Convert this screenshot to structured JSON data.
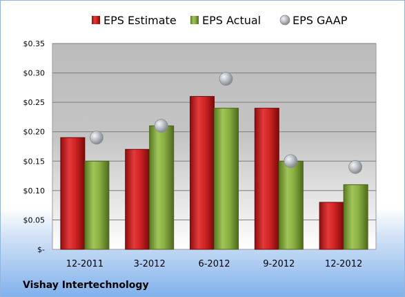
{
  "chart_data": {
    "type": "bar",
    "categories": [
      "12-2011",
      "3-2012",
      "6-2012",
      "9-2012",
      "12-2012"
    ],
    "series": [
      {
        "name": "EPS Estimate",
        "kind": "bar",
        "values": [
          0.19,
          0.17,
          0.26,
          0.24,
          0.08
        ],
        "color": "#cc1f1f"
      },
      {
        "name": "EPS Actual",
        "kind": "bar",
        "values": [
          0.15,
          0.21,
          0.24,
          0.15,
          0.11
        ],
        "color": "#7fa13a"
      },
      {
        "name": "EPS GAAP",
        "kind": "scatter",
        "values": [
          0.19,
          0.21,
          0.29,
          0.15,
          0.14
        ],
        "color": "#b8bcc2"
      }
    ],
    "ylim": [
      0,
      0.35
    ],
    "yticks": [
      0,
      0.05,
      0.1,
      0.15,
      0.2,
      0.25,
      0.3,
      0.35
    ],
    "ytick_labels": [
      "$-",
      "$0.05",
      "$0.10",
      "$0.15",
      "$0.20",
      "$0.25",
      "$0.30",
      "$0.35"
    ],
    "legend_position": "top",
    "grid": true
  },
  "footer": {
    "company": "Vishay Intertechnology"
  }
}
